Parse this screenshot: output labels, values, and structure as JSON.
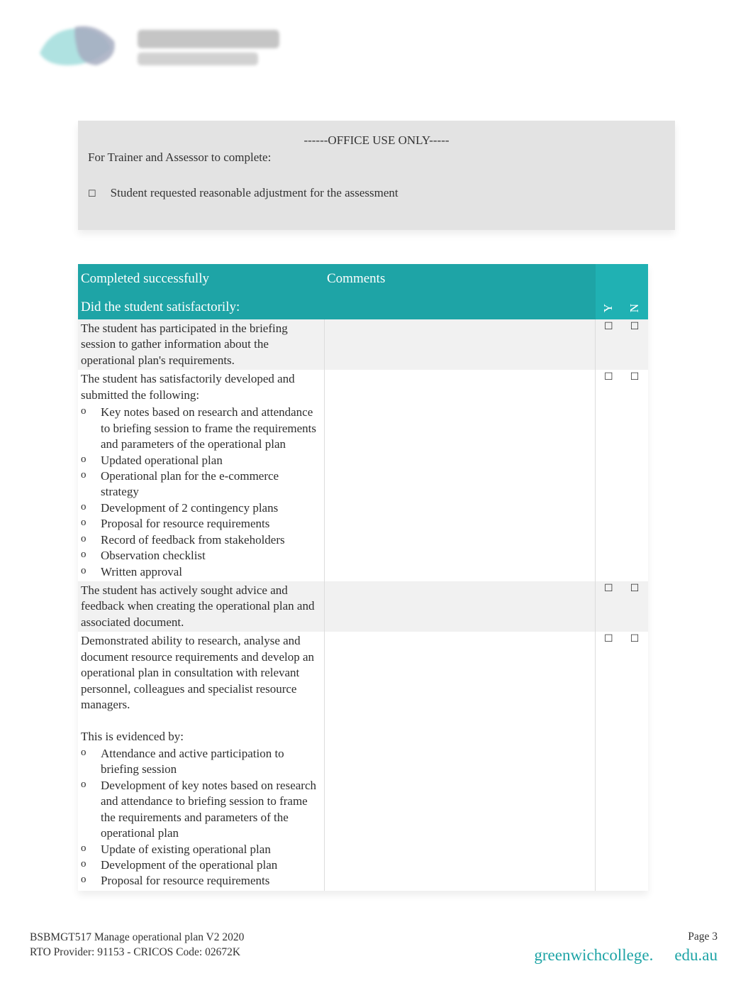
{
  "colors": {
    "teal": "#1ea4a6",
    "header_bg": "#e3e3e3",
    "row_alt": "#f1f1f1",
    "white": "#ffffff",
    "text": "#333333"
  },
  "office_box": {
    "title": "------OFFICE USE ONLY-----",
    "subtitle": "For Trainer and Assessor to complete:",
    "item1": "Student requested reasonable adjustment for the assessment"
  },
  "table": {
    "headers": {
      "col1_line1": "Completed successfully",
      "col1_line2": "Did the student satisfactorily:",
      "col2": "Comments",
      "y": "Y",
      "n": "N"
    },
    "rows": [
      {
        "text": "The student has participated in the briefing session to gather information about the operational plan's    requirements."
      },
      {
        "text": "The student has satisfactorily developed and submitted the following:",
        "bullets": [
          "Key notes based on research and attendance to briefing session to frame the requirements and parameters of the operational plan",
          "Updated operational plan",
          "Operational plan for the e-commerce strategy",
          "Development of 2 contingency plans",
          "Proposal for resource requirements",
          "Record of feedback from stakeholders",
          "Observation checklist",
          "Written approval"
        ]
      },
      {
        "text": "The student has actively sought advice and feedback when creating the operational plan and associated document."
      },
      {
        "text": "Demonstrated ability to research, analyse and document resource requirements and develop an operational plan in consultation with relevant personnel, colleagues and specialist resource managers.",
        "text2": "This is evidenced by:",
        "bullets": [
          "Attendance and active participation to briefing session",
          "Development of key notes based on research and attendance to briefing session to frame the requirements and parameters of the operational plan",
          "Update of existing operational plan",
          "Development of the operational plan",
          "Proposal for resource requirements"
        ]
      }
    ]
  },
  "footer": {
    "line1": "BSBMGT517 Manage operational plan V2 2020",
    "line2": "RTO Provider: 91153     - CRICOS  Code: 02672K",
    "page": "Page 3",
    "url1": "greenwichcollege.",
    "url2": "edu.au"
  }
}
